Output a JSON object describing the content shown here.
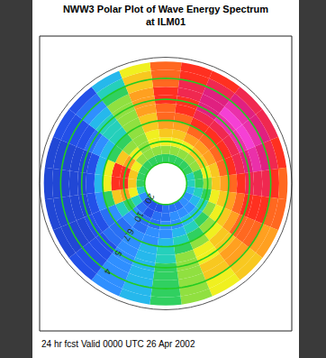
{
  "chart_data": {
    "type": "polar_contour",
    "title": "NWW3 Polar Plot of Wave Energy Spectrum",
    "subtitle": "at ILM01",
    "annotations": [
      "24 hr fcst Valid 0000 UTC 26 Apr 2002"
    ],
    "rlim": [
      0,
      0.3
    ],
    "rticks": [
      {
        "value": 0.05,
        "label": "20"
      },
      {
        "value": 0.1,
        "label": "10"
      },
      {
        "value": 0.15,
        "label": "6.7"
      },
      {
        "value": 0.2,
        "label": "5"
      },
      {
        "value": 0.25,
        "label": "4"
      }
    ],
    "color_range": [
      0,
      10
    ],
    "grid": true,
    "directions": [
      0,
      15,
      30,
      45,
      60,
      75,
      90,
      105,
      120,
      135,
      150,
      165,
      180,
      195,
      210,
      225,
      240,
      255,
      270,
      285,
      300,
      315,
      330,
      345
    ],
    "frequencies": [
      0.06,
      0.08,
      0.1,
      0.12,
      0.14,
      0.16,
      0.18,
      0.2,
      0.22,
      0.24,
      0.26,
      0.28
    ],
    "cells": [
      [
        4.5,
        5,
        5.5,
        6,
        6.5,
        7,
        7,
        7.5,
        7.5,
        7,
        7,
        7
      ],
      [
        4.5,
        5,
        5.5,
        6,
        6.5,
        7,
        7.5,
        7.5,
        8,
        8,
        7.5,
        7.5
      ],
      [
        4.5,
        5,
        5.5,
        6.5,
        7,
        7.5,
        8,
        8.5,
        8.5,
        8.5,
        8,
        7.5
      ],
      [
        4.5,
        5,
        6,
        6.5,
        7,
        7.5,
        8,
        9,
        9.5,
        9,
        8.5,
        8
      ],
      [
        4.5,
        5,
        6,
        6.5,
        7,
        7.5,
        8,
        9,
        9.5,
        9,
        8.5,
        8
      ],
      [
        4,
        4.5,
        5.5,
        6,
        7,
        7.5,
        8,
        8.5,
        9,
        8.5,
        8,
        7.5
      ],
      [
        4,
        4.5,
        5,
        6,
        6.5,
        7,
        7.5,
        8,
        8,
        8,
        7.5,
        7
      ],
      [
        3.5,
        4,
        4.5,
        5.5,
        6,
        6.5,
        7,
        7.5,
        7.5,
        7.5,
        7,
        7
      ],
      [
        3,
        3.5,
        4,
        5,
        5.5,
        6,
        6.5,
        7,
        7,
        7,
        6.5,
        6.5
      ],
      [
        3,
        3,
        3.5,
        4.5,
        5,
        5.5,
        6,
        6,
        6.5,
        6.5,
        6,
        6
      ],
      [
        2.5,
        3,
        3.5,
        4,
        4.5,
        5,
        5.5,
        5.5,
        6,
        6,
        5.5,
        5.5
      ],
      [
        2.5,
        3,
        3,
        3.5,
        4,
        4.5,
        5,
        5,
        5,
        5,
        5,
        5
      ],
      [
        2.5,
        2.5,
        3,
        3,
        3.5,
        4,
        4,
        4.5,
        4.5,
        4.5,
        4.5,
        4.5
      ],
      [
        2,
        2.5,
        2.5,
        3,
        3,
        3.5,
        3.5,
        3.5,
        3.5,
        3.5,
        3.5,
        3.5
      ],
      [
        2,
        2,
        2.5,
        2.5,
        3,
        3,
        3,
        3,
        3,
        3,
        3,
        3
      ],
      [
        2,
        2.5,
        3,
        3,
        2.5,
        2.5,
        2.5,
        2,
        2,
        2,
        2,
        2
      ],
      [
        3,
        4,
        4.5,
        4,
        3,
        2.5,
        2,
        2,
        1.5,
        1.5,
        1.5,
        1.5
      ],
      [
        4,
        5.5,
        6.5,
        6,
        4.5,
        3,
        2,
        1.5,
        1.5,
        1.5,
        1.5,
        1.5
      ],
      [
        4.5,
        6,
        7.5,
        7.5,
        5.5,
        3.5,
        2,
        1.5,
        1.5,
        1.5,
        1.5,
        1.5
      ],
      [
        4.5,
        6,
        7.5,
        7.5,
        5.5,
        3.5,
        2,
        1.5,
        1.5,
        1.5,
        1.5,
        1.5
      ],
      [
        4.5,
        5.5,
        6.5,
        6,
        4.5,
        3.5,
        3,
        2.5,
        2,
        2,
        2,
        2
      ],
      [
        4.5,
        5,
        5.5,
        5,
        4.5,
        4,
        4,
        4,
        3.5,
        3,
        2.5,
        2
      ],
      [
        4.5,
        5,
        5,
        5,
        5,
        5,
        5,
        5,
        5,
        4.5,
        4,
        3.5
      ],
      [
        4.5,
        5,
        5.5,
        5.5,
        6,
        6,
        6.5,
        6.5,
        6.5,
        6,
        6,
        5.5
      ]
    ]
  }
}
